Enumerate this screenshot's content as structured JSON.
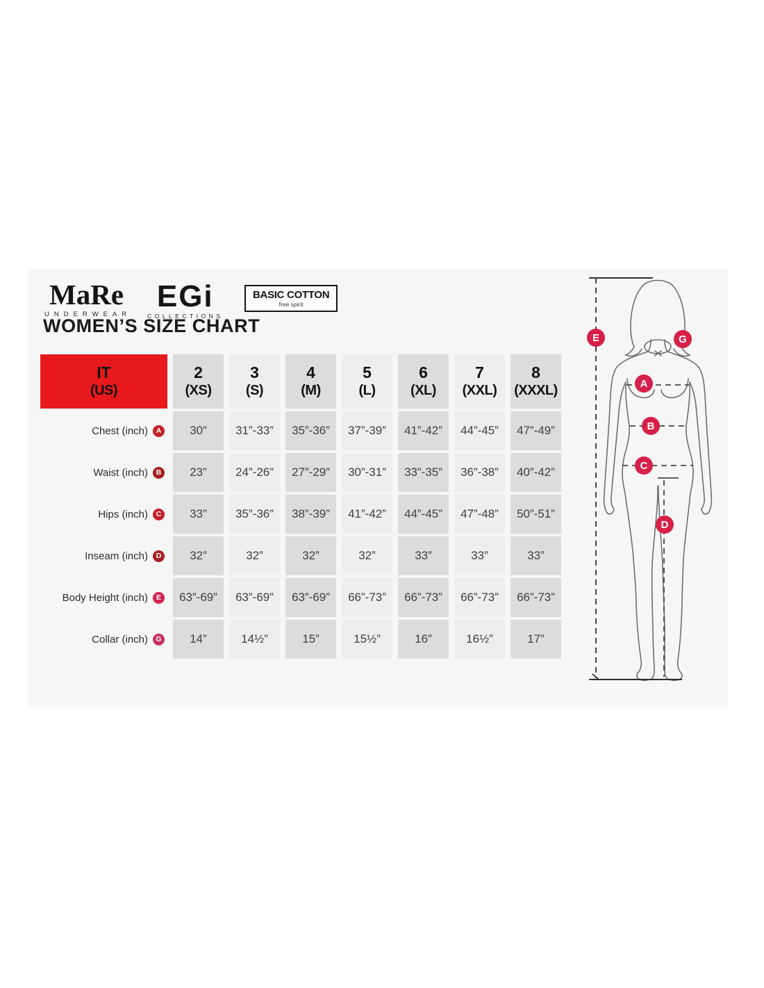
{
  "title": "WOMEN’S SIZE CHART",
  "logos": {
    "mare": {
      "name": "MaRe",
      "tagline": "UNDERWEAR"
    },
    "egi": {
      "name": "EGi",
      "tagline": "COLLECTIONS"
    },
    "basic_cotton": {
      "name": "BASIC COTTON",
      "tagline": "free spirit"
    }
  },
  "colors": {
    "header_red": "#e8191c",
    "column_gray": "#dddcdc",
    "column_light": "#efeeee",
    "panel_bg": "#f7f6f6",
    "figure_badge": "#d6204a"
  },
  "chart_data": {
    "type": "table",
    "title": "WOMEN’S SIZE CHART",
    "corner_header": {
      "line1": "IT",
      "line2": "(US)"
    },
    "columns": [
      {
        "size": "2",
        "name": "(XS)"
      },
      {
        "size": "3",
        "name": "(S)"
      },
      {
        "size": "4",
        "name": "(M)"
      },
      {
        "size": "5",
        "name": "(L)"
      },
      {
        "size": "6",
        "name": "(XL)"
      },
      {
        "size": "7",
        "name": "(XXL)"
      },
      {
        "size": "8",
        "name": "(XXXL)"
      }
    ],
    "rows": [
      {
        "label": "Chest (inch)",
        "marker": "A",
        "marker_color": "#c42127",
        "values": [
          "30”",
          "31”-33”",
          "35”-36”",
          "37”-39”",
          "41”-42”",
          "44”-45”",
          "47”-49”"
        ]
      },
      {
        "label": "Waist (inch)",
        "marker": "B",
        "marker_color": "#a81e24",
        "values": [
          "23”",
          "24”-26”",
          "27”-29”",
          "30”-31”",
          "33”-35”",
          "36”-38”",
          "40”-42”"
        ]
      },
      {
        "label": "Hips (inch)",
        "marker": "C",
        "marker_color": "#c42127",
        "values": [
          "33”",
          "35”-36”",
          "38”-39”",
          "41”-42”",
          "44”-45”",
          "47”-48”",
          "50”-51”"
        ]
      },
      {
        "label": "Inseam (inch)",
        "marker": "D",
        "marker_color": "#ab1f26",
        "values": [
          "32”",
          "32”",
          "32”",
          "32”",
          "33”",
          "33”",
          "33”"
        ]
      },
      {
        "label": "Body Height (inch)",
        "marker": "E",
        "marker_color": "#d12553",
        "values": [
          "63”-69”",
          "63”-69”",
          "63”-69”",
          "66”-73”",
          "66”-73”",
          "66”-73”",
          "66”-73”"
        ]
      },
      {
        "label": "Collar (inch)",
        "marker": "G",
        "marker_color": "#c73064",
        "values": [
          "14”",
          "14½”",
          "15”",
          "15½”",
          "16”",
          "16½”",
          "17”"
        ]
      }
    ]
  },
  "figure": {
    "badges": [
      {
        "letter": "A"
      },
      {
        "letter": "B"
      },
      {
        "letter": "C"
      },
      {
        "letter": "D"
      },
      {
        "letter": "E"
      },
      {
        "letter": "G"
      }
    ]
  }
}
